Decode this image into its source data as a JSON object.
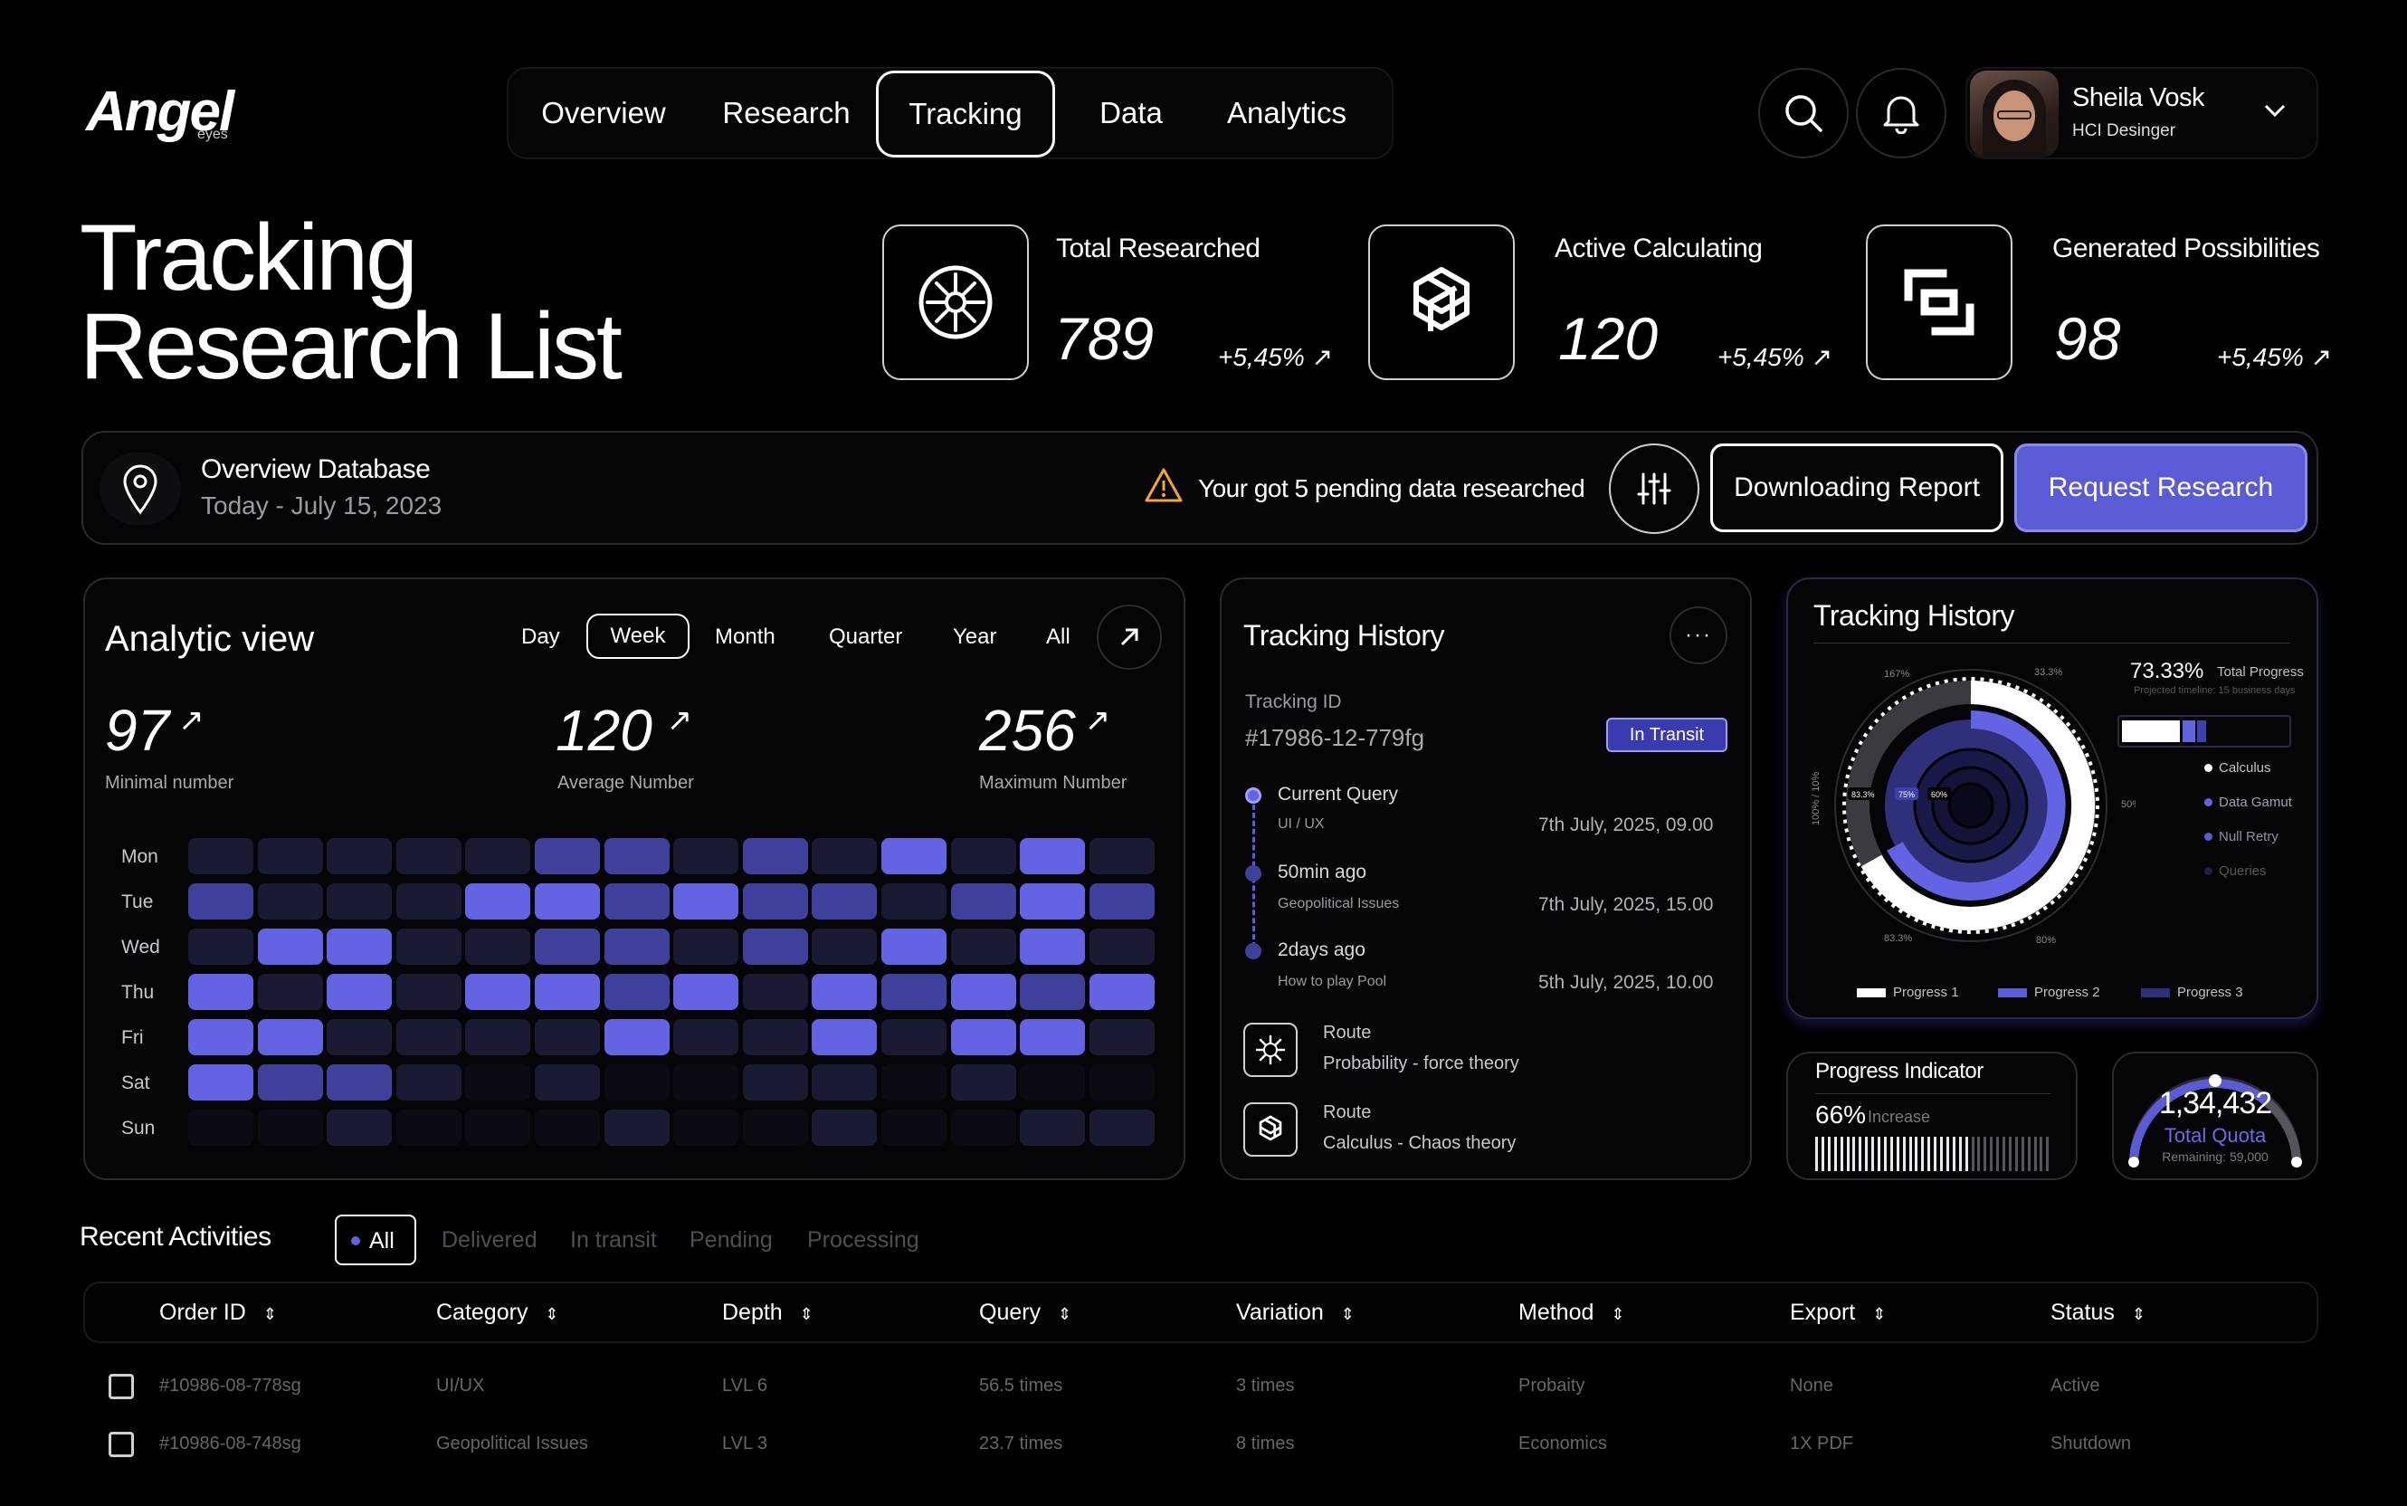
{
  "brand": {
    "name": "Angel",
    "sub": "eyes"
  },
  "nav": {
    "items": [
      "Overview",
      "Research",
      "Tracking",
      "Data",
      "Analytics"
    ],
    "active": "Tracking"
  },
  "user": {
    "name": "Sheila Vosk",
    "role": "HCI Desinger"
  },
  "page": {
    "title_line1": "Tracking",
    "title_line2": "Research List"
  },
  "stats": [
    {
      "label": "Total Researched",
      "value": "789",
      "delta": "+5,45%"
    },
    {
      "label": "Active Calculating",
      "value": "120",
      "delta": "+5,45%"
    },
    {
      "label": "Generated Possibilities",
      "value": "98",
      "delta": "+5,45%"
    }
  ],
  "overview": {
    "title": "Overview Database",
    "date": "Today - July 15, 2023",
    "warning": "Your got 5 pending data researched",
    "download_label": "Downloading Report",
    "request_label": "Request Research"
  },
  "analytic": {
    "title": "Analytic view",
    "ranges": [
      "Day",
      "Week",
      "Month",
      "Quarter",
      "Year",
      "All"
    ],
    "active_range": "Week",
    "metrics": [
      {
        "value": "97",
        "label": "Minimal number"
      },
      {
        "value": "120",
        "label": "Average Number"
      },
      {
        "value": "256",
        "label": "Maximum Number"
      }
    ],
    "days": [
      "Mon",
      "Tue",
      "Wed",
      "Thu",
      "Fri",
      "Sat",
      "Sun"
    ],
    "heatmap_levels": [
      [
        1,
        1,
        1,
        1,
        1,
        2,
        2,
        1,
        2,
        1,
        3,
        1,
        3,
        1
      ],
      [
        2,
        1,
        1,
        1,
        3,
        3,
        2,
        3,
        2,
        2,
        1,
        2,
        3,
        2
      ],
      [
        1,
        3,
        3,
        1,
        1,
        2,
        2,
        1,
        2,
        1,
        3,
        1,
        3,
        1
      ],
      [
        3,
        1,
        3,
        1,
        3,
        3,
        2,
        3,
        1,
        3,
        2,
        3,
        2,
        3
      ],
      [
        3,
        3,
        1,
        1,
        1,
        1,
        3,
        1,
        1,
        3,
        1,
        3,
        3,
        1
      ],
      [
        3,
        2,
        2,
        1,
        0,
        1,
        0,
        0,
        1,
        1,
        0,
        1,
        0,
        0
      ],
      [
        0,
        0,
        1,
        0,
        0,
        0,
        1,
        0,
        0,
        1,
        0,
        0,
        1,
        1
      ]
    ],
    "colors": [
      "#0b0b14",
      "#1a1a33",
      "#3f3f9c",
      "#6363e3"
    ]
  },
  "tracking_history": {
    "title": "Tracking History",
    "id_label": "Tracking ID",
    "id_value": "#17986-12-779fg",
    "badge": "In Transit",
    "events": [
      {
        "title": "Current Query",
        "sub": "UI / UX",
        "date": "7th July, 2025, 09.00"
      },
      {
        "title": "50min ago",
        "sub": "Geopolitical Issues",
        "date": "7th July, 2025, 15.00"
      },
      {
        "title": "2days ago",
        "sub": "How to play Pool",
        "date": "5th July, 2025, 10.00"
      }
    ],
    "routes": [
      {
        "label": "Route",
        "value": "Probability - force theory"
      },
      {
        "label": "Route",
        "value": "Calculus - Chaos theory"
      }
    ]
  },
  "tracking_chart": {
    "title": "Tracking History",
    "total_percent": "73.33%",
    "total_label": "Total Progress",
    "projected": "Projected timeline: 15 business days",
    "legend_items": [
      "Calculus",
      "Data Gamut",
      "Null Retry",
      "Queries"
    ],
    "ring_labels": [
      "167%",
      "33.3%",
      "50%",
      "80%",
      "83.3%",
      "100% / 10%"
    ],
    "inner_labels": [
      "83.3%",
      "75%",
      "60%"
    ],
    "progress_legend": [
      "Progress 1",
      "Progress 2",
      "Progress 3"
    ],
    "colors": {
      "progress1": "#ffffff",
      "progress2": "#5b5bd6",
      "progress3": "#2f2f7a"
    }
  },
  "progress_indicator": {
    "title": "Progress Indicator",
    "value": "66%",
    "label": "Increase",
    "fraction": 0.66
  },
  "quota": {
    "value": "1,34,432",
    "label": "Total Quota",
    "remaining": "Remaining: 59,000"
  },
  "activities": {
    "title": "Recent Activities",
    "filters": [
      "All",
      "Delivered",
      "In transit",
      "Pending",
      "Processing"
    ],
    "columns": [
      "Order ID",
      "Category",
      "Depth",
      "Query",
      "Variation",
      "Method",
      "Export",
      "Status"
    ],
    "rows": [
      [
        "#10986-08-778sg",
        "UI/UX",
        "LVL 6",
        "56.5 times",
        "3 times",
        "Probaity",
        "None",
        "Active"
      ],
      [
        "#10986-08-748sg",
        "Geopolitical Issues",
        "LVL 3",
        "23.7 times",
        "8 times",
        "Economics",
        "1X PDF",
        "Shutdown"
      ]
    ]
  }
}
